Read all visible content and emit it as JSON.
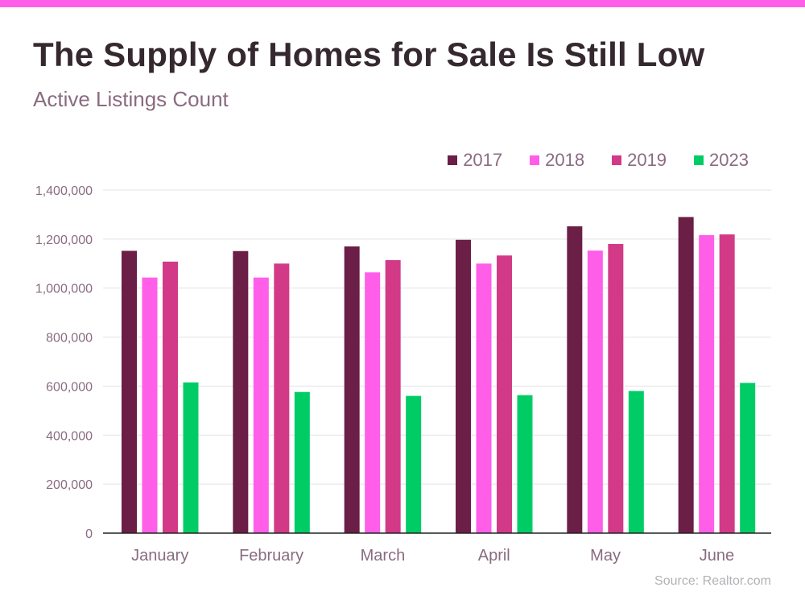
{
  "header": {
    "title": "The Supply of Homes for Sale Is Still Low",
    "subtitle": "Active Listings Count"
  },
  "footer": {
    "source": "Source: Realtor.com"
  },
  "colors": {
    "top_bar": "#ff5ee8",
    "axis": "#222222",
    "grid": "#e3e3e3",
    "tick_text": "#8a6b80"
  },
  "chart_data": {
    "type": "bar",
    "title": "The Supply of Homes for Sale Is Still Low",
    "subtitle": "Active Listings Count",
    "categories": [
      "January",
      "February",
      "March",
      "April",
      "May",
      "June"
    ],
    "series": [
      {
        "name": "2017",
        "color": "#6b1e46",
        "values": [
          1152000,
          1151000,
          1170000,
          1197000,
          1252000,
          1290000
        ]
      },
      {
        "name": "2018",
        "color": "#ff5ee8",
        "values": [
          1043000,
          1043000,
          1064000,
          1100000,
          1153000,
          1216000
        ]
      },
      {
        "name": "2019",
        "color": "#d23a87",
        "values": [
          1108000,
          1100000,
          1114000,
          1133000,
          1180000,
          1219000
        ]
      },
      {
        "name": "2023",
        "color": "#00cc66",
        "values": [
          615000,
          576000,
          560000,
          563000,
          580000,
          613000
        ]
      }
    ],
    "ylim": [
      0,
      1400000
    ],
    "yticks": [
      "0",
      "200,000",
      "400,000",
      "600,000",
      "800,000",
      "1,000,000",
      "1,200,000",
      "1,400,000"
    ],
    "ytick_values": [
      0,
      200000,
      400000,
      600000,
      800000,
      1000000,
      1200000,
      1400000
    ],
    "grid": true,
    "legend": "top-right"
  }
}
